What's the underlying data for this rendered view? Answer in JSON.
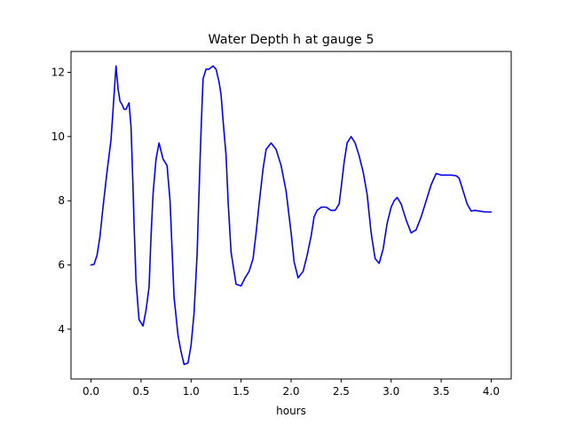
{
  "chart_data": {
    "type": "line",
    "title": "Water Depth h at gauge 5",
    "xlabel": "hours",
    "ylabel": "",
    "xlim": [
      -0.2,
      4.2
    ],
    "ylim": [
      2.45,
      12.65
    ],
    "xticks": [
      0.0,
      0.5,
      1.0,
      1.5,
      2.0,
      2.5,
      3.0,
      3.5,
      4.0
    ],
    "xtick_labels": [
      "0.0",
      "0.5",
      "1.0",
      "1.5",
      "2.0",
      "2.5",
      "3.0",
      "3.5",
      "4.0"
    ],
    "yticks": [
      4,
      6,
      8,
      10,
      12
    ],
    "ytick_labels": [
      "4",
      "6",
      "8",
      "10",
      "12"
    ],
    "grid": false,
    "legend": "none",
    "series": [
      {
        "color": "#0000ff",
        "x": [
          0.0,
          0.03,
          0.06,
          0.09,
          0.12,
          0.16,
          0.2,
          0.25,
          0.27,
          0.29,
          0.3,
          0.31,
          0.33,
          0.35,
          0.38,
          0.4,
          0.42,
          0.43,
          0.45,
          0.48,
          0.52,
          0.55,
          0.58,
          0.6,
          0.62,
          0.65,
          0.68,
          0.72,
          0.76,
          0.79,
          0.81,
          0.83,
          0.87,
          0.9,
          0.93,
          0.97,
          1.0,
          1.03,
          1.06,
          1.08,
          1.1,
          1.12,
          1.15,
          1.18,
          1.22,
          1.25,
          1.28,
          1.3,
          1.32,
          1.35,
          1.37,
          1.4,
          1.45,
          1.5,
          1.54,
          1.58,
          1.62,
          1.65,
          1.68,
          1.72,
          1.75,
          1.8,
          1.85,
          1.9,
          1.95,
          2.0,
          2.03,
          2.07,
          2.12,
          2.16,
          2.2,
          2.23,
          2.26,
          2.3,
          2.35,
          2.4,
          2.44,
          2.48,
          2.5,
          2.53,
          2.56,
          2.6,
          2.64,
          2.68,
          2.72,
          2.76,
          2.8,
          2.84,
          2.88,
          2.92,
          2.96,
          3.0,
          3.03,
          3.06,
          3.1,
          3.15,
          3.2,
          3.25,
          3.3,
          3.35,
          3.4,
          3.45,
          3.5,
          3.55,
          3.6,
          3.65,
          3.68,
          3.7,
          3.73,
          3.76,
          3.8,
          3.84,
          3.88,
          3.92,
          3.96,
          4.0
        ],
        "y": [
          6.0,
          6.02,
          6.3,
          6.9,
          7.8,
          8.9,
          9.9,
          12.2,
          11.5,
          11.1,
          11.05,
          11.0,
          10.85,
          10.85,
          11.05,
          10.3,
          8.4,
          7.3,
          5.5,
          4.3,
          4.1,
          4.6,
          5.3,
          6.9,
          8.2,
          9.3,
          9.8,
          9.3,
          9.1,
          8.0,
          6.5,
          5.0,
          3.8,
          3.3,
          2.9,
          2.95,
          3.5,
          4.5,
          6.3,
          8.3,
          10.2,
          11.8,
          12.1,
          12.1,
          12.2,
          12.1,
          11.7,
          11.3,
          10.5,
          9.4,
          8.0,
          6.4,
          5.4,
          5.35,
          5.6,
          5.8,
          6.2,
          7.0,
          7.9,
          9.0,
          9.6,
          9.8,
          9.6,
          9.1,
          8.3,
          7.0,
          6.1,
          5.6,
          5.8,
          6.3,
          6.9,
          7.5,
          7.7,
          7.8,
          7.8,
          7.7,
          7.7,
          7.9,
          8.4,
          9.2,
          9.8,
          10.0,
          9.8,
          9.4,
          8.9,
          8.2,
          7.0,
          6.2,
          6.05,
          6.5,
          7.3,
          7.8,
          8.0,
          8.1,
          7.9,
          7.4,
          7.0,
          7.1,
          7.5,
          8.0,
          8.5,
          8.85,
          8.8,
          8.8,
          8.8,
          8.78,
          8.7,
          8.5,
          8.2,
          7.9,
          7.68,
          7.7,
          7.68,
          7.66,
          7.65,
          7.65
        ]
      }
    ]
  }
}
